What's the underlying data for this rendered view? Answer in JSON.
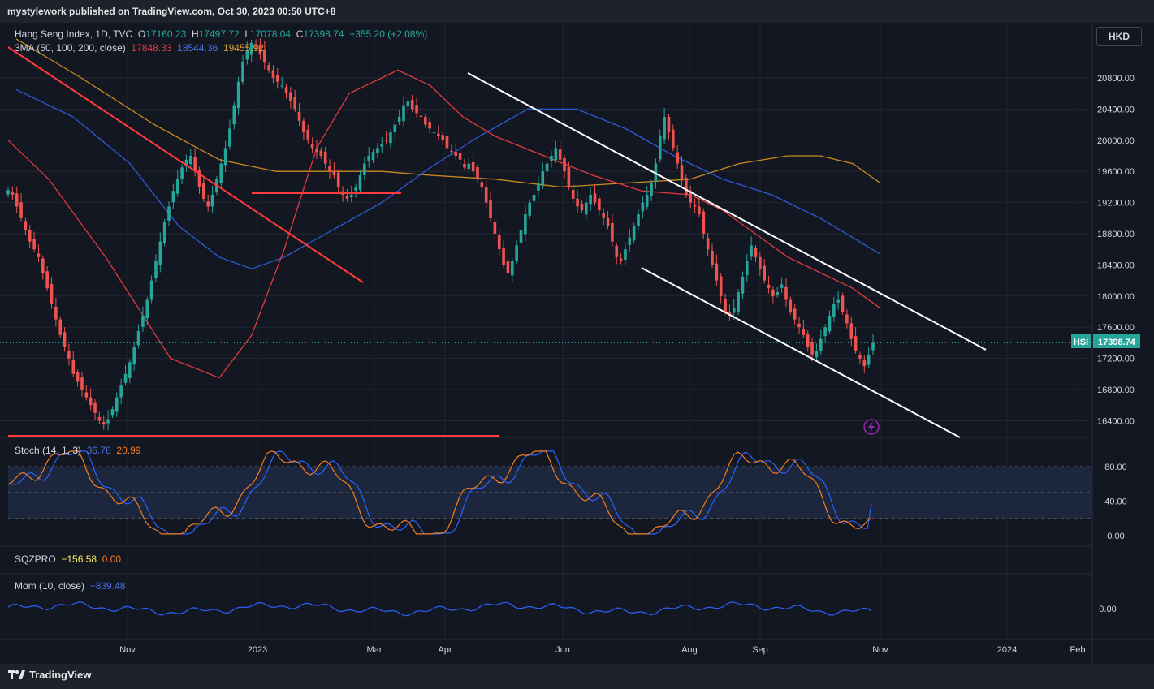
{
  "publisher_line": "mystylework published on TradingView.com, Oct 30, 2023 00:50 UTC+8",
  "currency_button": "HKD",
  "brand": "TradingView",
  "icons": {
    "brand_logo": "tradingview-logo-icon",
    "event": "lightning-icon"
  },
  "colors": {
    "up": "#26a69a",
    "down": "#ef5350",
    "ma50": "#e03a3e",
    "ma100": "#2d5bd6",
    "ma200": "#c98a1b",
    "trendline": "#ff3b3b",
    "channel": "#ffffff",
    "stoch_k": "#2962ff",
    "stoch_d": "#f57c1f",
    "mom": "#2962ff",
    "price_tag": "#26a69a"
  },
  "legend": {
    "symbol_name": "Hang Seng Index, 1D, TVC",
    "o_label": "O",
    "o_value": "17160.23",
    "h_label": "H",
    "h_value": "17497.72",
    "l_label": "L",
    "l_value": "17078.04",
    "c_label": "C",
    "c_value": "17398.74",
    "change": "+355.20 (+2.08%)",
    "ma_label": "3MA (50, 100, 200, close)",
    "ma50_value": "17848.33",
    "ma100_value": "18544.36",
    "ma200_value": "19455.92",
    "stoch_label": "Stoch (14, 1, 3)",
    "stoch_k_value": "36.78",
    "stoch_d_value": "20.99",
    "sqz_label": "SQZPRO",
    "sqz_value1": "−156.58",
    "sqz_value2": "0.00",
    "mom_label": "Mom (10, close)",
    "mom_value": "−839.48"
  },
  "price_tag": {
    "symbol": "HSI",
    "value": "17398.74"
  },
  "chart_data": {
    "type": "candlestick",
    "title": "Hang Seng Index, 1D, TVC",
    "price_axis": {
      "ticks": [
        "20800.00",
        "20400.00",
        "20000.00",
        "19600.00",
        "19200.00",
        "18800.00",
        "18400.00",
        "18000.00",
        "17600.00",
        "17200.00",
        "16800.00",
        "16400.00"
      ],
      "range": [
        16170,
        21300
      ]
    },
    "time_axis": {
      "labels": [
        "Nov",
        "2023",
        "Mar",
        "Apr",
        "Jun",
        "Aug",
        "Sep",
        "Nov",
        "2024",
        "Feb"
      ]
    },
    "last_close": 17398.74,
    "closes": [
      19360,
      19300,
      19150,
      19000,
      18850,
      18700,
      18600,
      18500,
      18300,
      18100,
      17900,
      17700,
      17500,
      17350,
      17200,
      17000,
      16900,
      16800,
      16700,
      16600,
      16500,
      16400,
      16350,
      16420,
      16550,
      16700,
      16850,
      17000,
      17150,
      17350,
      17550,
      17750,
      17950,
      18200,
      18450,
      18700,
      18950,
      19150,
      19350,
      19500,
      19650,
      19750,
      19800,
      19600,
      19400,
      19250,
      19150,
      19300,
      19500,
      19700,
      19900,
      20150,
      20450,
      20750,
      21000,
      21150,
      21250,
      21200,
      21100,
      21000,
      20900,
      20800,
      20750,
      20700,
      20600,
      20500,
      20400,
      20250,
      20100,
      20000,
      19900,
      19850,
      19800,
      19700,
      19600,
      19550,
      19400,
      19300,
      19250,
      19300,
      19400,
      19550,
      19700,
      19800,
      19850,
      19900,
      19950,
      20000,
      20100,
      20200,
      20300,
      20450,
      20500,
      20400,
      20350,
      20300,
      20200,
      20150,
      20100,
      20050,
      20000,
      19900,
      19850,
      19800,
      19750,
      19650,
      19700,
      19600,
      19500,
      19400,
      19200,
      19000,
      18800,
      18600,
      18400,
      18300,
      18450,
      18650,
      18850,
      19050,
      19200,
      19300,
      19450,
      19600,
      19700,
      19800,
      19900,
      19750,
      19600,
      19400,
      19250,
      19150,
      19100,
      19200,
      19300,
      19200,
      19100,
      19000,
      18900,
      18700,
      18500,
      18450,
      18600,
      18750,
      18900,
      19050,
      19200,
      19300,
      19450,
      19700,
      20050,
      20300,
      20100,
      19900,
      19700,
      19500,
      19300,
      19200,
      19150,
      19050,
      18800,
      18600,
      18400,
      18200,
      18000,
      17800,
      17750,
      17850,
      18050,
      18250,
      18450,
      18650,
      18500,
      18350,
      18200,
      18100,
      18000,
      18050,
      18150,
      17950,
      17800,
      17700,
      17600,
      17500,
      17350,
      17250,
      17300,
      17450,
      17600,
      17750,
      17900,
      17950,
      17800,
      17650,
      17450,
      17300,
      17200,
      17100,
      17250,
      17398.74
    ],
    "ma50": [
      [
        0,
        20000
      ],
      [
        50,
        19500
      ],
      [
        120,
        18500
      ],
      [
        200,
        17200
      ],
      [
        260,
        16950
      ],
      [
        300,
        17500
      ],
      [
        340,
        18600
      ],
      [
        380,
        19900
      ],
      [
        420,
        20600
      ],
      [
        480,
        20900
      ],
      [
        520,
        20700
      ],
      [
        560,
        20300
      ],
      [
        600,
        20050
      ],
      [
        660,
        19800
      ],
      [
        720,
        19550
      ],
      [
        780,
        19350
      ],
      [
        840,
        19300
      ],
      [
        880,
        19100
      ],
      [
        920,
        18800
      ],
      [
        960,
        18500
      ],
      [
        1000,
        18300
      ],
      [
        1040,
        18100
      ],
      [
        1073,
        17850
      ]
    ],
    "ma100": [
      [
        10,
        20650
      ],
      [
        80,
        20300
      ],
      [
        150,
        19700
      ],
      [
        210,
        18900
      ],
      [
        260,
        18500
      ],
      [
        300,
        18350
      ],
      [
        340,
        18500
      ],
      [
        400,
        18850
      ],
      [
        460,
        19200
      ],
      [
        520,
        19650
      ],
      [
        580,
        20050
      ],
      [
        640,
        20400
      ],
      [
        700,
        20400
      ],
      [
        760,
        20150
      ],
      [
        820,
        19800
      ],
      [
        880,
        19500
      ],
      [
        940,
        19300
      ],
      [
        1000,
        19000
      ],
      [
        1073,
        18544
      ]
    ],
    "ma200": [
      [
        10,
        21300
      ],
      [
        90,
        20800
      ],
      [
        180,
        20200
      ],
      [
        260,
        19750
      ],
      [
        330,
        19600
      ],
      [
        400,
        19600
      ],
      [
        460,
        19600
      ],
      [
        520,
        19550
      ],
      [
        600,
        19500
      ],
      [
        680,
        19400
      ],
      [
        760,
        19450
      ],
      [
        840,
        19500
      ],
      [
        900,
        19700
      ],
      [
        960,
        19800
      ],
      [
        1000,
        19800
      ],
      [
        1040,
        19700
      ],
      [
        1073,
        19456
      ]
    ],
    "stoch_axis": {
      "ticks": [
        "80.00",
        "40.00",
        "0.00"
      ],
      "band": [
        20,
        80
      ]
    },
    "stoch_k_last": 36.78,
    "stoch_d_last": 20.99,
    "mom_axis": {
      "ticks": [
        "0.00"
      ]
    },
    "mom_last": -839.48
  }
}
